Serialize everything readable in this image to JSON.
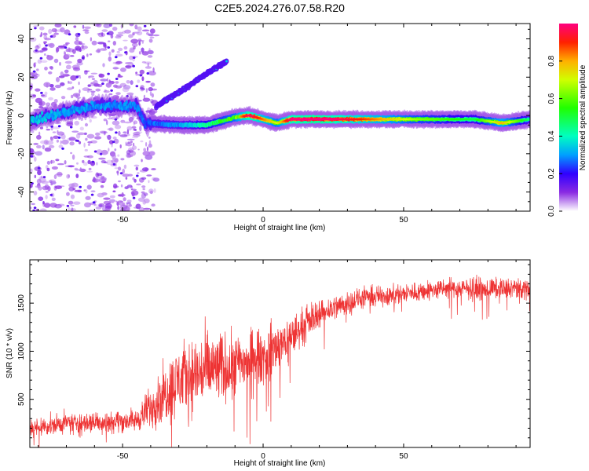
{
  "title": "C2E5.2024.276.07.58.R20",
  "chart_data": [
    {
      "type": "heatmap",
      "title": "",
      "xlabel": "Height of straight line (km)",
      "ylabel": "Frequency (Hz)",
      "xlim": [
        -83,
        95
      ],
      "ylim": [
        -50,
        48
      ],
      "xticks": [
        -50,
        0,
        50
      ],
      "yticks": [
        -40,
        -20,
        0,
        20,
        40
      ],
      "colorbar": {
        "label": "Normalized spectral amplitude",
        "range": [
          0,
          1
        ],
        "ticks": [
          0.0,
          0.2,
          0.4,
          0.6,
          0.8
        ]
      },
      "ridge": {
        "description_points": [
          {
            "x": -83,
            "y": -3,
            "amp": 0.35
          },
          {
            "x": -70,
            "y": 2,
            "amp": 0.3
          },
          {
            "x": -60,
            "y": 5,
            "amp": 0.3
          },
          {
            "x": -45,
            "y": 5,
            "amp": 0.3
          },
          {
            "x": -42,
            "y": -4,
            "amp": 0.25
          },
          {
            "x": -30,
            "y": -5,
            "amp": 0.3
          },
          {
            "x": -20,
            "y": -5,
            "amp": 0.45
          },
          {
            "x": -10,
            "y": -1,
            "amp": 0.6
          },
          {
            "x": -5,
            "y": 0,
            "amp": 0.9
          },
          {
            "x": 5,
            "y": -4,
            "amp": 0.6
          },
          {
            "x": 10,
            "y": -2,
            "amp": 0.9
          },
          {
            "x": 20,
            "y": -2,
            "amp": 0.95
          },
          {
            "x": 35,
            "y": -2,
            "amp": 0.8
          },
          {
            "x": 55,
            "y": -2,
            "amp": 0.55
          },
          {
            "x": 75,
            "y": -2,
            "amp": 0.4
          },
          {
            "x": 85,
            "y": -4,
            "amp": 0.7
          },
          {
            "x": 95,
            "y": -2,
            "amp": 0.35
          }
        ],
        "branch": [
          {
            "x": -38,
            "y": 5
          },
          {
            "x": -30,
            "y": 12
          },
          {
            "x": -20,
            "y": 22
          },
          {
            "x": -13,
            "y": 28
          }
        ]
      }
    },
    {
      "type": "line",
      "title": "",
      "xlabel": "Height of straight line (km)",
      "ylabel": "SNR (10 * v/v)",
      "xlim": [
        -83,
        95
      ],
      "ylim": [
        0,
        1950
      ],
      "xticks": [
        -50,
        0,
        50
      ],
      "yticks": [
        500,
        1000,
        1500
      ],
      "series": [
        {
          "color": "#ee3333",
          "envelope": [
            {
              "x": -83,
              "mean": 200,
              "spread": 120
            },
            {
              "x": -70,
              "mean": 250,
              "spread": 150
            },
            {
              "x": -55,
              "mean": 270,
              "spread": 160
            },
            {
              "x": -45,
              "mean": 280,
              "spread": 150
            },
            {
              "x": -40,
              "mean": 420,
              "spread": 300
            },
            {
              "x": -30,
              "mean": 700,
              "spread": 500
            },
            {
              "x": -20,
              "mean": 800,
              "spread": 550
            },
            {
              "x": -10,
              "mean": 850,
              "spread": 450
            },
            {
              "x": 0,
              "mean": 950,
              "spread": 400
            },
            {
              "x": 10,
              "mean": 1150,
              "spread": 300
            },
            {
              "x": 20,
              "mean": 1400,
              "spread": 200
            },
            {
              "x": 35,
              "mean": 1550,
              "spread": 150
            },
            {
              "x": 50,
              "mean": 1600,
              "spread": 140
            },
            {
              "x": 65,
              "mean": 1650,
              "spread": 140
            },
            {
              "x": 80,
              "mean": 1650,
              "spread": 150
            },
            {
              "x": 95,
              "mean": 1650,
              "spread": 150
            }
          ]
        }
      ]
    }
  ]
}
